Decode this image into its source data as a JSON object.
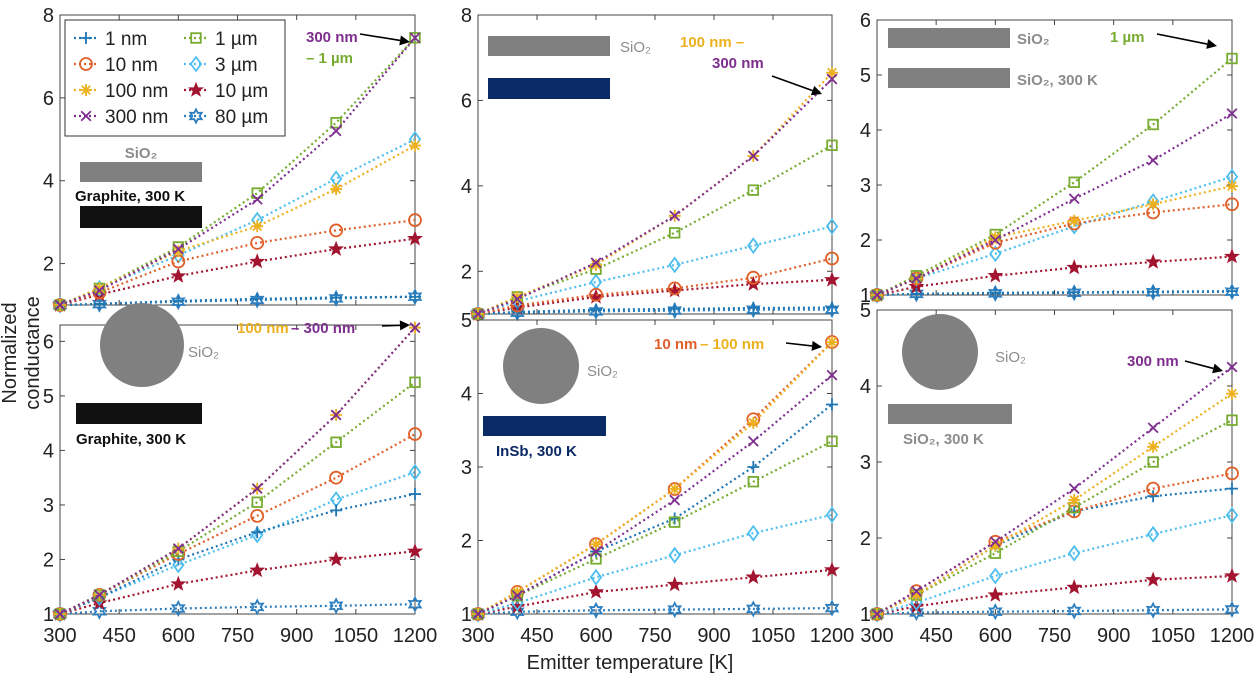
{
  "figure": {
    "xlabel": "Emitter temperature [K]",
    "ylabel": "Normalized conductance",
    "legend": [
      {
        "label": "1 nm",
        "color": "#1f77b4",
        "marker": "plus"
      },
      {
        "label": "10 nm",
        "color": "#e0602a",
        "marker": "circle"
      },
      {
        "label": "100 nm",
        "color": "#edb120",
        "marker": "asterisk"
      },
      {
        "label": "300 nm",
        "color": "#7e2f8e",
        "marker": "x"
      },
      {
        "label": "1 µm",
        "color": "#77ac30",
        "marker": "square"
      },
      {
        "label": "3 µm",
        "color": "#4dbeee",
        "marker": "diamond"
      },
      {
        "label": "10 µm",
        "color": "#a2142f",
        "marker": "star5"
      },
      {
        "label": "80 µm",
        "color": "#2e7fc0",
        "marker": "star6"
      }
    ]
  },
  "chart_data": [
    {
      "type": "line",
      "panel": "top-left",
      "x": [
        300,
        400,
        600,
        800,
        1000,
        1200
      ],
      "xticks": [
        "300",
        "450",
        "600",
        "750",
        "900",
        "1050",
        "1200"
      ],
      "ylim": [
        1,
        8
      ],
      "yticks": [
        "2",
        "4",
        "6",
        "8"
      ],
      "annotations": [
        {
          "label": "SiO₂",
          "color": "#8c8c8c"
        },
        {
          "label": "Graphite, 300 K",
          "color": "#111111"
        },
        {
          "label": "300 nm",
          "color": "#7e2f8e"
        },
        {
          "label": "– 1 µm",
          "color": "#77ac30"
        }
      ],
      "series": [
        {
          "name": "1 nm",
          "values": [
            1,
            1.03,
            1.1,
            1.15,
            1.18,
            1.2
          ]
        },
        {
          "name": "10 nm",
          "values": [
            1,
            1.3,
            2.05,
            2.5,
            2.8,
            3.05
          ]
        },
        {
          "name": "100 nm",
          "values": [
            1,
            1.4,
            2.3,
            2.9,
            3.8,
            4.85
          ]
        },
        {
          "name": "300 nm",
          "values": [
            1,
            1.35,
            2.35,
            3.55,
            5.2,
            7.45
          ]
        },
        {
          "name": "1 µm",
          "values": [
            1,
            1.4,
            2.4,
            3.7,
            5.4,
            7.45
          ]
        },
        {
          "name": "3 µm",
          "values": [
            1,
            1.4,
            2.2,
            3.05,
            4.05,
            5.0
          ]
        },
        {
          "name": "10 µm",
          "values": [
            1,
            1.25,
            1.7,
            2.05,
            2.35,
            2.6
          ]
        },
        {
          "name": "80 µm",
          "values": [
            1,
            1.02,
            1.08,
            1.12,
            1.16,
            1.2
          ]
        }
      ]
    },
    {
      "type": "line",
      "panel": "top-middle",
      "x": [
        300,
        400,
        600,
        800,
        1000,
        1200
      ],
      "xticks": [
        "300",
        "450",
        "600",
        "750",
        "900",
        "1050",
        "1200"
      ],
      "ylim": [
        1,
        8
      ],
      "yticks": [
        "2",
        "4",
        "6",
        "8"
      ],
      "annotations": [
        {
          "label": "SiO₂",
          "color": "#8c8c8c"
        },
        {
          "label": "100 nm –",
          "color": "#edb120"
        },
        {
          "label": "300 nm",
          "color": "#7e2f8e"
        }
      ],
      "series": [
        {
          "name": "1 nm",
          "values": [
            1,
            1.05,
            1.1,
            1.12,
            1.14,
            1.15
          ]
        },
        {
          "name": "10 nm",
          "values": [
            1,
            1.2,
            1.45,
            1.6,
            1.85,
            2.3
          ]
        },
        {
          "name": "100 nm",
          "values": [
            1,
            1.4,
            2.15,
            3.3,
            4.7,
            6.65
          ]
        },
        {
          "name": "300 nm",
          "values": [
            1,
            1.35,
            2.2,
            3.3,
            4.7,
            6.5
          ]
        },
        {
          "name": "1 µm",
          "values": [
            1,
            1.4,
            2.05,
            2.9,
            3.9,
            4.95
          ]
        },
        {
          "name": "3 µm",
          "values": [
            1,
            1.3,
            1.75,
            2.15,
            2.6,
            3.05
          ]
        },
        {
          "name": "10 µm",
          "values": [
            1,
            1.15,
            1.4,
            1.55,
            1.7,
            1.8
          ]
        },
        {
          "name": "80 µm",
          "values": [
            1,
            1.03,
            1.06,
            1.08,
            1.1,
            1.1
          ]
        }
      ]
    },
    {
      "type": "line",
      "panel": "top-right",
      "x": [
        300,
        400,
        600,
        800,
        1000,
        1200
      ],
      "xticks": [
        "300",
        "450",
        "600",
        "750",
        "900",
        "1050",
        "1200"
      ],
      "ylim": [
        1,
        6
      ],
      "yticks": [
        "1",
        "2",
        "3",
        "4",
        "5",
        "6"
      ],
      "annotations": [
        {
          "label": "SiO₂",
          "color": "#8c8c8c"
        },
        {
          "label": "SiO₂, 300 K",
          "color": "#8c8c8c"
        },
        {
          "label": "1 µm",
          "color": "#77ac30"
        }
      ],
      "series": [
        {
          "name": "1 nm",
          "values": [
            1,
            1.02,
            1.04,
            1.05,
            1.06,
            1.07
          ]
        },
        {
          "name": "10 nm",
          "values": [
            1,
            1.3,
            1.95,
            2.3,
            2.5,
            2.65
          ]
        },
        {
          "name": "100 nm",
          "values": [
            1,
            1.3,
            2.05,
            2.35,
            2.65,
            2.98
          ]
        },
        {
          "name": "300 nm",
          "values": [
            1,
            1.3,
            2.0,
            2.75,
            3.45,
            4.3
          ]
        },
        {
          "name": "1 µm",
          "values": [
            1,
            1.35,
            2.1,
            3.05,
            4.1,
            5.3
          ]
        },
        {
          "name": "3 µm",
          "values": [
            1,
            1.3,
            1.75,
            2.25,
            2.7,
            3.15
          ]
        },
        {
          "name": "10 µm",
          "values": [
            1,
            1.15,
            1.35,
            1.5,
            1.6,
            1.7
          ]
        },
        {
          "name": "80 µm",
          "values": [
            1,
            1.02,
            1.03,
            1.04,
            1.05,
            1.06
          ]
        }
      ]
    },
    {
      "type": "line",
      "panel": "bottom-left",
      "x": [
        300,
        400,
        600,
        800,
        1000,
        1200
      ],
      "xticks": [
        "300",
        "450",
        "600",
        "750",
        "900",
        "1050",
        "1200"
      ],
      "ylim": [
        1,
        6.3
      ],
      "yticks": [
        "1",
        "2",
        "3",
        "4",
        "5",
        "6"
      ],
      "annotations": [
        {
          "label": "SiO₂",
          "color": "#8c8c8c"
        },
        {
          "label": "Graphite, 300 K",
          "color": "#111111"
        },
        {
          "label": "100 nm",
          "color": "#edb120"
        },
        {
          "label": "– 300 nm",
          "color": "#7e2f8e"
        }
      ],
      "series": [
        {
          "name": "1 nm",
          "values": [
            1,
            1.3,
            2.0,
            2.5,
            2.9,
            3.2
          ]
        },
        {
          "name": "10 nm",
          "values": [
            1,
            1.35,
            2.1,
            2.8,
            3.5,
            4.3
          ]
        },
        {
          "name": "100 nm",
          "values": [
            1,
            1.35,
            2.2,
            3.3,
            4.65,
            6.25
          ]
        },
        {
          "name": "300 nm",
          "values": [
            1,
            1.35,
            2.2,
            3.3,
            4.65,
            6.25
          ]
        },
        {
          "name": "1 µm",
          "values": [
            1,
            1.35,
            2.15,
            3.05,
            4.15,
            5.25
          ]
        },
        {
          "name": "3 µm",
          "values": [
            1,
            1.3,
            1.9,
            2.45,
            3.1,
            3.6
          ]
        },
        {
          "name": "10 µm",
          "values": [
            1,
            1.2,
            1.55,
            1.8,
            2.0,
            2.15
          ]
        },
        {
          "name": "80 µm",
          "values": [
            1,
            1.05,
            1.1,
            1.13,
            1.15,
            1.18
          ]
        }
      ]
    },
    {
      "type": "line",
      "panel": "bottom-middle",
      "x": [
        300,
        400,
        600,
        800,
        1000,
        1200
      ],
      "xticks": [
        "300",
        "450",
        "600",
        "750",
        "900",
        "1050",
        "1200"
      ],
      "ylim": [
        1,
        5
      ],
      "yticks": [
        "1",
        "2",
        "3",
        "4",
        "5"
      ],
      "annotations": [
        {
          "label": "SiO₂",
          "color": "#8c8c8c"
        },
        {
          "label": "InSb, 300 K",
          "color": "#0a2a66"
        },
        {
          "label": "10 nm",
          "color": "#e0602a"
        },
        {
          "label": "– 100 nm",
          "color": "#edb120"
        }
      ],
      "series": [
        {
          "name": "1 nm",
          "values": [
            1,
            1.25,
            1.85,
            2.3,
            3.0,
            3.85
          ]
        },
        {
          "name": "10 nm",
          "values": [
            1,
            1.3,
            1.95,
            2.7,
            3.65,
            4.7
          ]
        },
        {
          "name": "100 nm",
          "values": [
            1,
            1.3,
            1.95,
            2.7,
            3.6,
            4.7
          ]
        },
        {
          "name": "300 nm",
          "values": [
            1,
            1.25,
            1.85,
            2.55,
            3.35,
            4.25
          ]
        },
        {
          "name": "1 µm",
          "values": [
            1,
            1.25,
            1.75,
            2.25,
            2.8,
            3.35
          ]
        },
        {
          "name": "3 µm",
          "values": [
            1,
            1.15,
            1.5,
            1.8,
            2.1,
            2.35
          ]
        },
        {
          "name": "10 µm",
          "values": [
            1,
            1.1,
            1.3,
            1.4,
            1.5,
            1.6
          ]
        },
        {
          "name": "80 µm",
          "values": [
            1,
            1.03,
            1.05,
            1.06,
            1.07,
            1.08
          ]
        }
      ]
    },
    {
      "type": "line",
      "panel": "bottom-right",
      "x": [
        300,
        400,
        600,
        800,
        1000,
        1200
      ],
      "xticks": [
        "300",
        "450",
        "600",
        "750",
        "900",
        "1050",
        "1200"
      ],
      "ylim": [
        1,
        5
      ],
      "yticks": [
        "1",
        "2",
        "3",
        "4",
        "5"
      ],
      "annotations": [
        {
          "label": "SiO₂",
          "color": "#8c8c8c"
        },
        {
          "label": "SiO₂, 300 K",
          "color": "#8c8c8c"
        },
        {
          "label": "300 nm",
          "color": "#7e2f8e"
        }
      ],
      "series": [
        {
          "name": "1 nm",
          "values": [
            1,
            1.25,
            1.9,
            2.35,
            2.55,
            2.65
          ]
        },
        {
          "name": "10 nm",
          "values": [
            1,
            1.3,
            1.95,
            2.35,
            2.65,
            2.85
          ]
        },
        {
          "name": "100 nm",
          "values": [
            1,
            1.25,
            1.9,
            2.5,
            3.2,
            3.9
          ]
        },
        {
          "name": "300 nm",
          "values": [
            1,
            1.3,
            1.95,
            2.65,
            3.45,
            4.25
          ]
        },
        {
          "name": "1 µm",
          "values": [
            1,
            1.25,
            1.8,
            2.4,
            3.0,
            3.55
          ]
        },
        {
          "name": "3 µm",
          "values": [
            1,
            1.15,
            1.5,
            1.8,
            2.05,
            2.3
          ]
        },
        {
          "name": "10 µm",
          "values": [
            1,
            1.1,
            1.25,
            1.35,
            1.45,
            1.5
          ]
        },
        {
          "name": "80 µm",
          "values": [
            1,
            1.02,
            1.03,
            1.04,
            1.05,
            1.06
          ]
        }
      ]
    }
  ]
}
